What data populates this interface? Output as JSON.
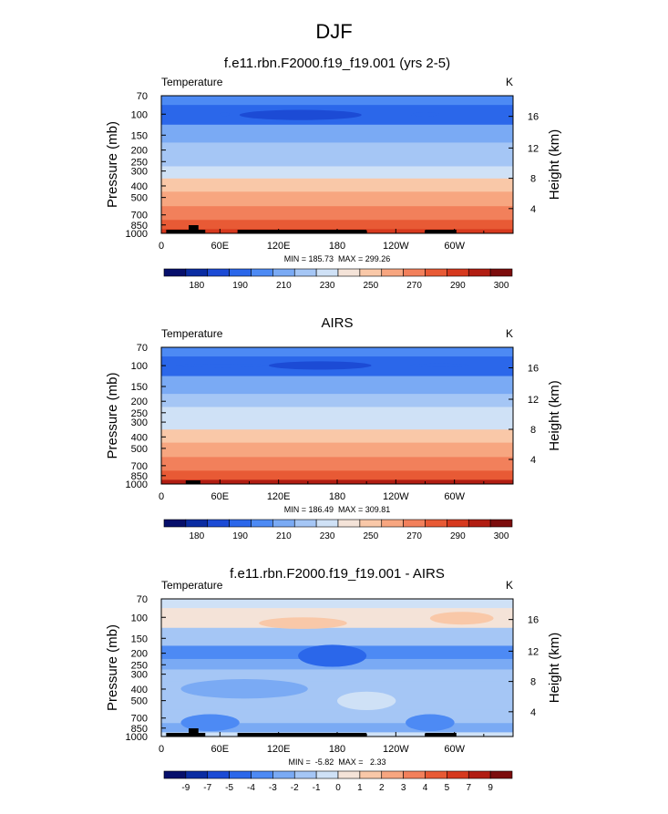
{
  "figure_title": "DJF",
  "chart_data": [
    {
      "type": "heatmap",
      "title": "f.e11.rbn.F2000.f19_f19.001 (yrs 2-5)",
      "left_label": "Temperature",
      "units": "K",
      "ylabel": "Pressure (mb)",
      "y2label": "Height (km)",
      "x_ticks": [
        "0",
        "60E",
        "120E",
        "180",
        "120W",
        "60W"
      ],
      "x_tick_lons": [
        0,
        60,
        120,
        180,
        240,
        300
      ],
      "xlim": [
        0,
        360
      ],
      "y_ticks": [
        "70",
        "100",
        "150",
        "200",
        "250",
        "300",
        "400",
        "500",
        "700",
        "850",
        "1000"
      ],
      "y_tick_values": [
        70,
        100,
        150,
        200,
        250,
        300,
        400,
        500,
        700,
        850,
        1000
      ],
      "ylim": [
        70,
        1000
      ],
      "yscale": "log",
      "y2_ticks": [
        "4",
        "8",
        "12",
        "16"
      ],
      "stats": "MIN = 185.73  MAX = 299.26",
      "colorbar_labels": [
        "180",
        "190",
        "210",
        "230",
        "250",
        "270",
        "290",
        "300"
      ],
      "levels": [
        {
          "p": 70,
          "value": 205
        },
        {
          "p": 100,
          "value": 199
        },
        {
          "p": 150,
          "value": 211
        },
        {
          "p": 200,
          "value": 220
        },
        {
          "p": 250,
          "value": 229
        },
        {
          "p": 300,
          "value": 238
        },
        {
          "p": 400,
          "value": 251
        },
        {
          "p": 500,
          "value": 262
        },
        {
          "p": 700,
          "value": 276
        },
        {
          "p": 850,
          "value": 285
        },
        {
          "p": 1000,
          "value": 294
        }
      ],
      "cold_patches": [
        {
          "lon": [
            80,
            205
          ],
          "p": [
            92,
            112
          ],
          "value": 187
        },
        {
          "lon": [
            255,
            285
          ],
          "p": [
            97,
            104
          ],
          "value": 190
        },
        {
          "lon": [
            60,
            70
          ],
          "p": [
            98,
            102
          ],
          "value": 192
        }
      ],
      "topography": [
        [
          5,
          45
        ],
        [
          78,
          210
        ],
        [
          270,
          302
        ]
      ],
      "topo_bump": [
        28,
        38
      ]
    },
    {
      "type": "heatmap",
      "title": "AIRS",
      "left_label": "Temperature",
      "units": "K",
      "ylabel": "Pressure (mb)",
      "y2label": "Height (km)",
      "x_ticks": [
        "0",
        "60E",
        "120E",
        "180",
        "120W",
        "60W"
      ],
      "x_tick_lons": [
        0,
        60,
        120,
        180,
        240,
        300
      ],
      "xlim": [
        0,
        360
      ],
      "y_ticks": [
        "70",
        "100",
        "150",
        "200",
        "250",
        "300",
        "400",
        "500",
        "700",
        "850",
        "1000"
      ],
      "y_tick_values": [
        70,
        100,
        150,
        200,
        250,
        300,
        400,
        500,
        700,
        850,
        1000
      ],
      "ylim": [
        70,
        1000
      ],
      "yscale": "log",
      "y2_ticks": [
        "4",
        "8",
        "12",
        "16"
      ],
      "stats": "MIN = 186.49  MAX = 309.81",
      "colorbar_labels": [
        "180",
        "190",
        "210",
        "230",
        "250",
        "270",
        "290",
        "300"
      ],
      "levels": [
        {
          "p": 70,
          "value": 205
        },
        {
          "p": 100,
          "value": 199
        },
        {
          "p": 150,
          "value": 211
        },
        {
          "p": 200,
          "value": 221
        },
        {
          "p": 250,
          "value": 230
        },
        {
          "p": 300,
          "value": 239
        },
        {
          "p": 400,
          "value": 252
        },
        {
          "p": 500,
          "value": 263
        },
        {
          "p": 700,
          "value": 277
        },
        {
          "p": 850,
          "value": 286
        },
        {
          "p": 1000,
          "value": 297
        }
      ],
      "cold_patches": [
        {
          "lon": [
            110,
            215
          ],
          "p": [
            92,
            108
          ],
          "value": 189
        },
        {
          "lon": [
            15,
            110
          ],
          "p": [
            97,
            103
          ],
          "value": 192
        },
        {
          "lon": [
            255,
            315
          ],
          "p": [
            96,
            103
          ],
          "value": 191
        }
      ],
      "topography": [
        [
          25,
          40
        ]
      ],
      "topo_bump": []
    },
    {
      "type": "heatmap",
      "title": "f.e11.rbn.F2000.f19_f19.001 - AIRS",
      "left_label": "Temperature",
      "units": "K",
      "ylabel": "Pressure (mb)",
      "y2label": "Height (km)",
      "x_ticks": [
        "0",
        "60E",
        "120E",
        "180",
        "120W",
        "60W"
      ],
      "x_tick_lons": [
        0,
        60,
        120,
        180,
        240,
        300
      ],
      "xlim": [
        0,
        360
      ],
      "y_ticks": [
        "70",
        "100",
        "150",
        "200",
        "250",
        "300",
        "400",
        "500",
        "700",
        "850",
        "1000"
      ],
      "y_tick_values": [
        70,
        100,
        150,
        200,
        250,
        300,
        400,
        500,
        700,
        850,
        1000
      ],
      "ylim": [
        70,
        1000
      ],
      "yscale": "log",
      "y2_ticks": [
        "4",
        "8",
        "12",
        "16"
      ],
      "stats": "MIN =  -5.82  MAX =   2.33",
      "colorbar_labels": [
        "-9",
        "-7",
        "-5",
        "-4",
        "-3",
        "-2",
        "-1",
        "0",
        "1",
        "2",
        "3",
        "4",
        "5",
        "7",
        "9"
      ],
      "levels": [
        {
          "p": 70,
          "value": -0.5
        },
        {
          "p": 100,
          "value": 0.5
        },
        {
          "p": 150,
          "value": -1.5
        },
        {
          "p": 200,
          "value": -3.5
        },
        {
          "p": 250,
          "value": -2.5
        },
        {
          "p": 300,
          "value": -1.5
        },
        {
          "p": 400,
          "value": -1.5
        },
        {
          "p": 500,
          "value": -1.5
        },
        {
          "p": 700,
          "value": -1.5
        },
        {
          "p": 850,
          "value": -2.5
        },
        {
          "p": 1000,
          "value": -0.5
        }
      ],
      "cold_patches": [
        {
          "lon": [
            100,
            190
          ],
          "p": [
            100,
            125
          ],
          "value": 1.5
        },
        {
          "lon": [
            275,
            340
          ],
          "p": [
            90,
            115
          ],
          "value": 1.5
        },
        {
          "lon": [
            140,
            210
          ],
          "p": [
            170,
            260
          ],
          "value": -4.5
        },
        {
          "lon": [
            20,
            150
          ],
          "p": [
            330,
            480
          ],
          "value": -2.5
        },
        {
          "lon": [
            180,
            240
          ],
          "p": [
            420,
            600
          ],
          "value": -0.5
        },
        {
          "lon": [
            20,
            80
          ],
          "p": [
            650,
            900
          ],
          "value": -3.5
        },
        {
          "lon": [
            250,
            300
          ],
          "p": [
            650,
            900
          ],
          "value": -3.5
        }
      ],
      "topography": [
        [
          5,
          45
        ],
        [
          78,
          210
        ],
        [
          270,
          302
        ]
      ],
      "topo_bump": [
        28,
        38
      ]
    }
  ],
  "colors": {
    "temperature_scale": [
      "#060f6b",
      "#0a2ca2",
      "#1c4bd5",
      "#2b67ea",
      "#4d8af4",
      "#7aaaf4",
      "#a5c6f5",
      "#cfe1f6",
      "#f4e3d8",
      "#f9c8a8",
      "#f7a680",
      "#f2805b",
      "#e85a35",
      "#d6391e",
      "#b11d12",
      "#7c0d0d"
    ],
    "difference_scale": [
      "#060f6b",
      "#0a2ca2",
      "#1c4bd5",
      "#2b67ea",
      "#4d8af4",
      "#7aaaf4",
      "#a5c6f5",
      "#cfe1f6",
      "#f4e3d8",
      "#f9c8a8",
      "#f7a680",
      "#f2805b",
      "#e85a35",
      "#d6391e",
      "#b11d12",
      "#7c0d0d"
    ],
    "topography": "#000000"
  }
}
